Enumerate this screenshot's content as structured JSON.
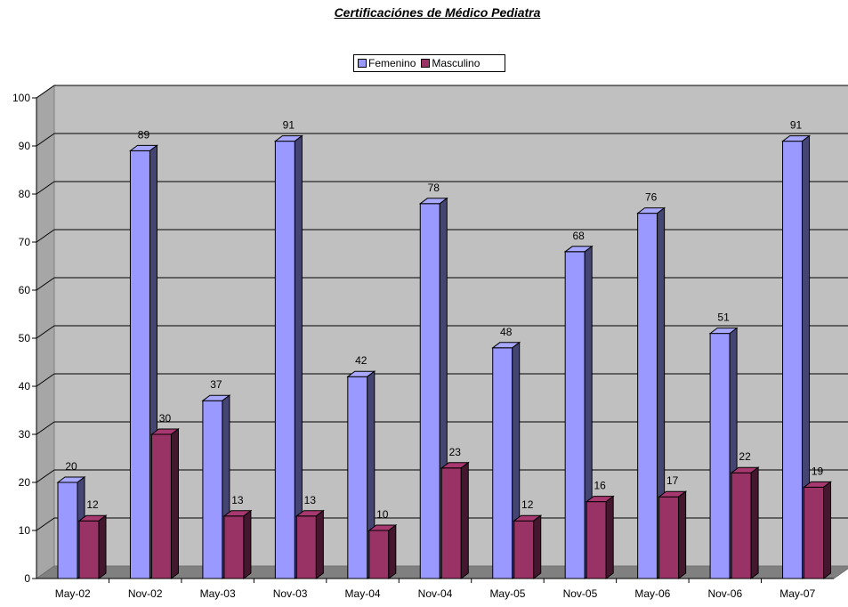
{
  "chart_data": {
    "type": "bar",
    "title": "Certificaciónes de Médico Pediatra",
    "categories": [
      "May-02",
      "Nov-02",
      "May-03",
      "Nov-03",
      "May-04",
      "Nov-04",
      "May-05",
      "Nov-05",
      "May-06",
      "Nov-06",
      "May-07"
    ],
    "series": [
      {
        "name": "Femenino",
        "values": [
          20,
          89,
          37,
          91,
          42,
          78,
          48,
          68,
          76,
          51,
          91
        ],
        "color": "#9999ff"
      },
      {
        "name": "Masculino",
        "values": [
          12,
          30,
          13,
          13,
          10,
          23,
          12,
          16,
          17,
          22,
          19
        ],
        "color": "#993366"
      }
    ],
    "ylim": [
      0,
      100
    ],
    "yticks": [
      0,
      10,
      20,
      30,
      40,
      50,
      60,
      70,
      80,
      90,
      100
    ],
    "grid": true,
    "legend_position": "top",
    "plot_background": "#c0c0c0",
    "floor_color": "#808080",
    "data_labels": true
  }
}
